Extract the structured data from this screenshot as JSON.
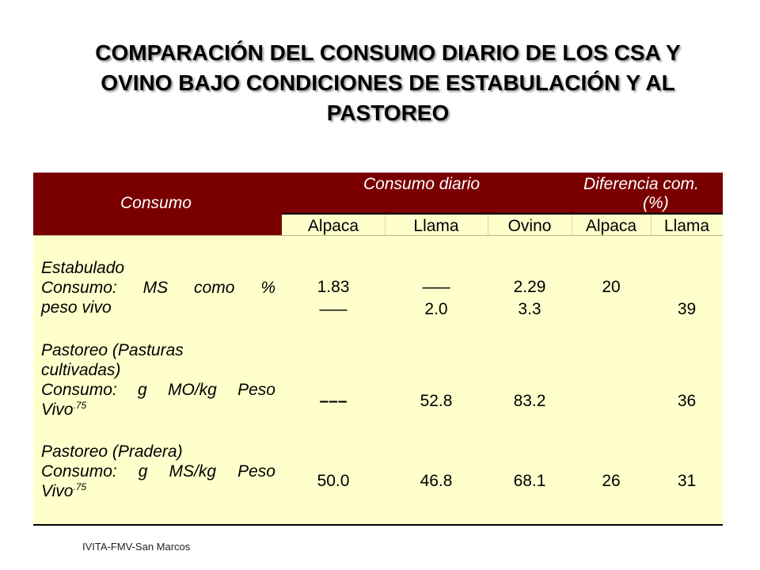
{
  "title_lines": [
    "COMPARACIÓN DEL CONSUMO DIARIO DE LOS CSA Y",
    "OVINO BAJO CONDICIONES DE ESTABULACIÓN  Y AL",
    "PASTOREO"
  ],
  "table": {
    "header": {
      "consumo": "Consumo",
      "consumo_diario": "Consumo diario",
      "diferencia_line1": "Diferencia com.",
      "diferencia_line2": "(%)",
      "columns": [
        "Alpaca",
        "Llama",
        "Ovino",
        "Alpaca",
        "Llama"
      ]
    },
    "rows": [
      {
        "label_lines": [
          "Estabulado",
          "Consumo:  MS  como  %",
          "peso vivo"
        ],
        "line1": [
          "1.83",
          "–––",
          "2.29",
          "20",
          ""
        ],
        "line2": [
          "–––",
          "2.0",
          "3.3",
          "",
          "39"
        ]
      },
      {
        "label_lines": [
          "Pastoreo (Pasturas",
          "cultivadas)",
          "Consumo:  g  MO/kg  Peso",
          "Vivo"
        ],
        "label_sup": ".75",
        "values": [
          "–––",
          "52.8",
          "83.2",
          "",
          "36"
        ]
      },
      {
        "label_lines": [
          "Pastoreo (Pradera)",
          "Consumo:  g  MS/kg  Peso",
          "Vivo"
        ],
        "label_sup": ".75",
        "values": [
          "50.0",
          "46.8",
          "68.1",
          "26",
          "31"
        ]
      }
    ]
  },
  "footer": "IVITA-FMV-San Marcos",
  "colors": {
    "header_bg": "#7a0000",
    "body_bg": "#ffffcc"
  }
}
